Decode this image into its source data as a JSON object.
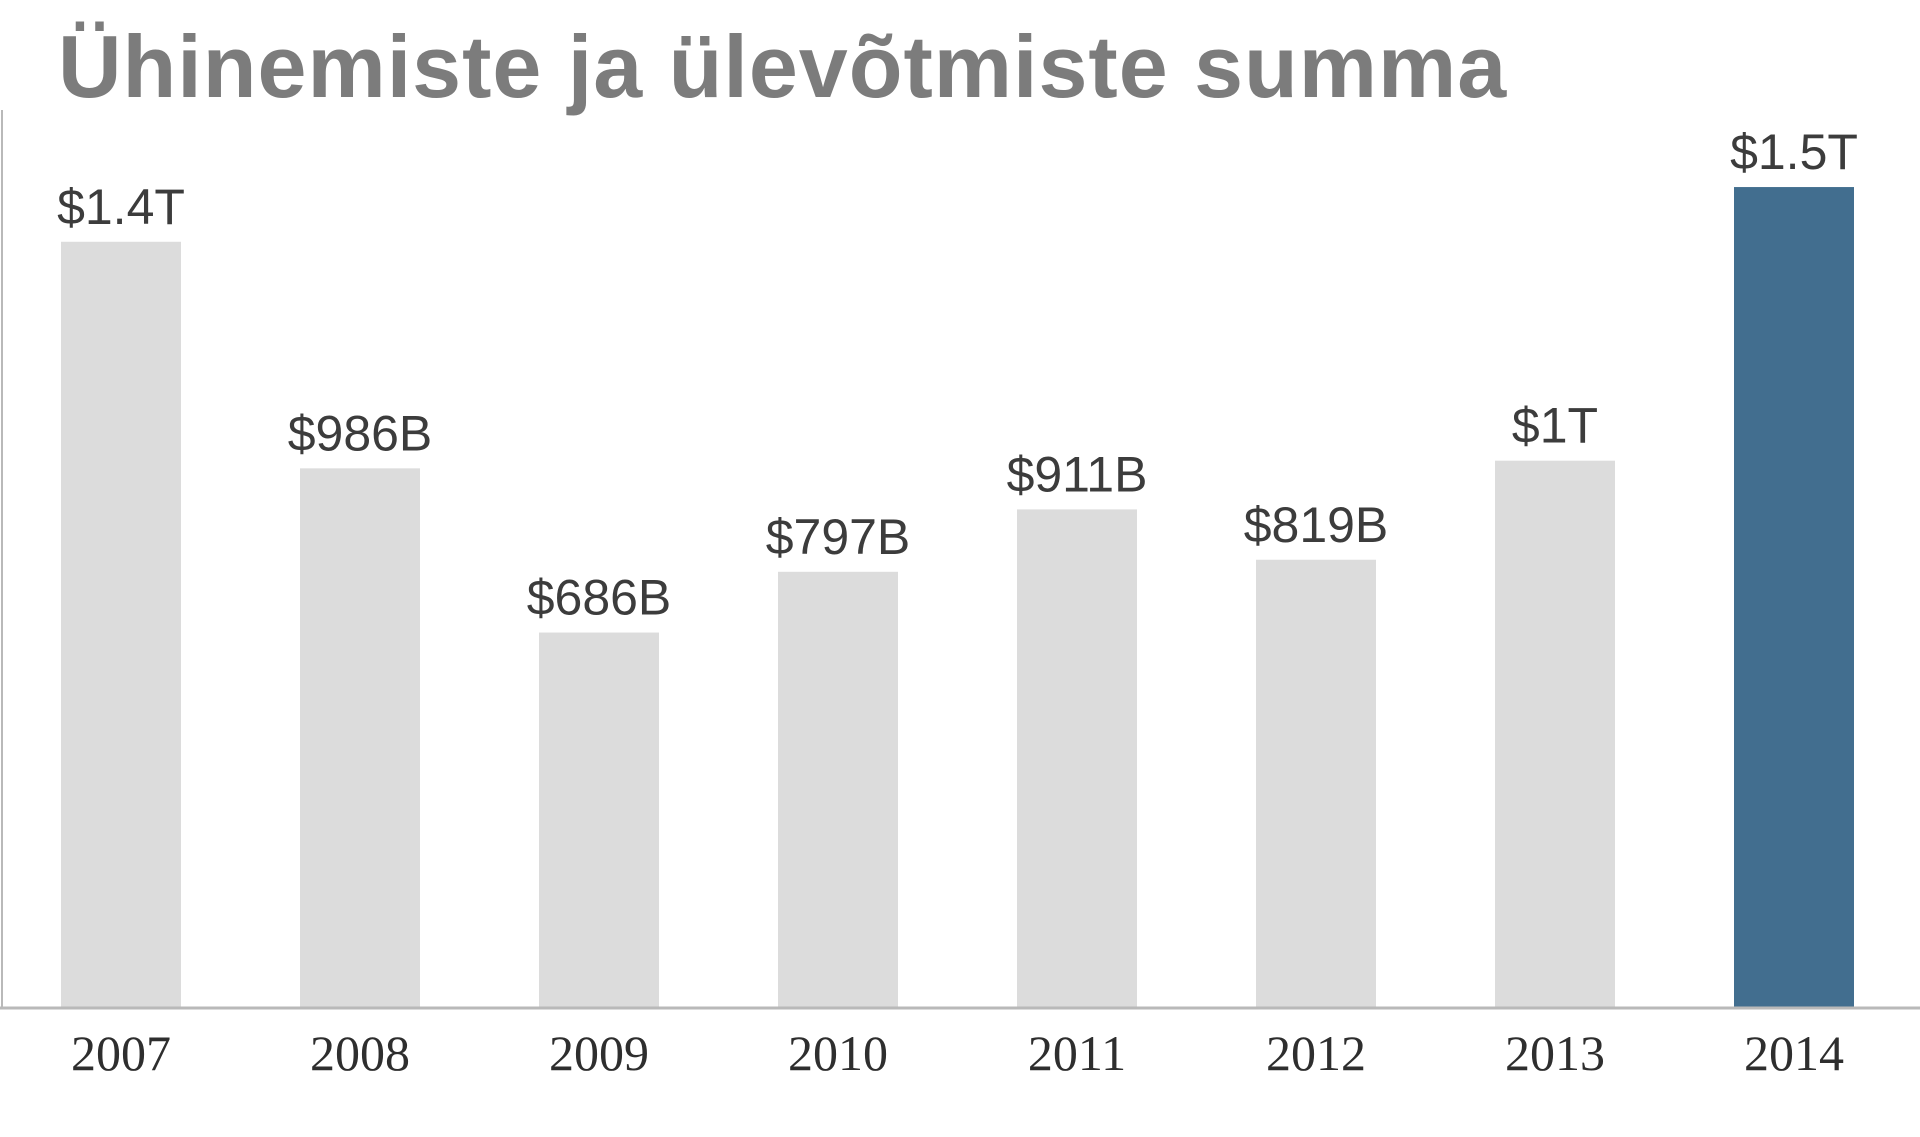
{
  "chart_data": {
    "type": "bar",
    "title": "Ühinemiste ja ülevõtmiste summa",
    "categories": [
      "2007",
      "2008",
      "2009",
      "2010",
      "2011",
      "2012",
      "2013",
      "2014"
    ],
    "values": [
      1400,
      986,
      686,
      797,
      911,
      819,
      1000,
      1500
    ],
    "value_unit": "billion USD",
    "data_labels": [
      "$1.4T",
      "$986B",
      "$686B",
      "$797B",
      "$911B",
      "$819B",
      "$1T",
      "$1.5T"
    ],
    "highlight_category": "2014",
    "ylim": [
      0,
      1640
    ],
    "grid": false,
    "xlabel": "",
    "ylabel": "",
    "colors": {
      "bar": "#dcdcdc",
      "highlight_bar": "#426e8f",
      "axis": "#b9b9b9"
    }
  }
}
